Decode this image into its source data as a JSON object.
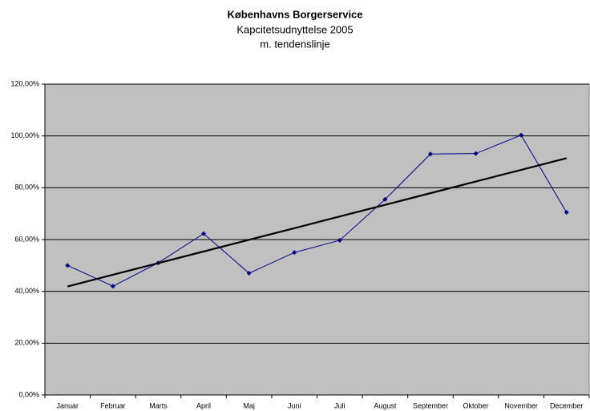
{
  "chart_data": {
    "type": "line",
    "title": "Københavns Borgerservice",
    "subtitle": [
      "Kapcitetsudnyttelse 2005",
      "m. tendenslinje"
    ],
    "categories": [
      "Januar",
      "Februar",
      "Marts",
      "April",
      "Maj",
      "Juni",
      "Juli",
      "August",
      "September",
      "Oktober",
      "November",
      "December"
    ],
    "series": [
      {
        "color": "#000080",
        "values": [
          50,
          42,
          51,
          62.3,
          47,
          55,
          59.7,
          75.5,
          93,
          93.2,
          100.3,
          70.5
        ],
        "markers": true
      },
      {
        "color": "#000000",
        "values": [
          41.9,
          46.4,
          50.9,
          55.4,
          59.9,
          64.4,
          68.9,
          73.4,
          77.9,
          82.4,
          86.9,
          91.4
        ],
        "markers": false
      }
    ],
    "ylim": [
      0,
      120
    ],
    "yticks": [
      {
        "value": 0,
        "label": "0,00%"
      },
      {
        "value": 20,
        "label": "20,00%"
      },
      {
        "value": 40,
        "label": "40,00%"
      },
      {
        "value": 60,
        "label": "60,00%"
      },
      {
        "value": 80,
        "label": "80,00%"
      },
      {
        "value": 100,
        "label": "100,00%"
      },
      {
        "value": 120,
        "label": "120,00%"
      }
    ],
    "grid": true,
    "plot_background": "#c0c0c0"
  }
}
